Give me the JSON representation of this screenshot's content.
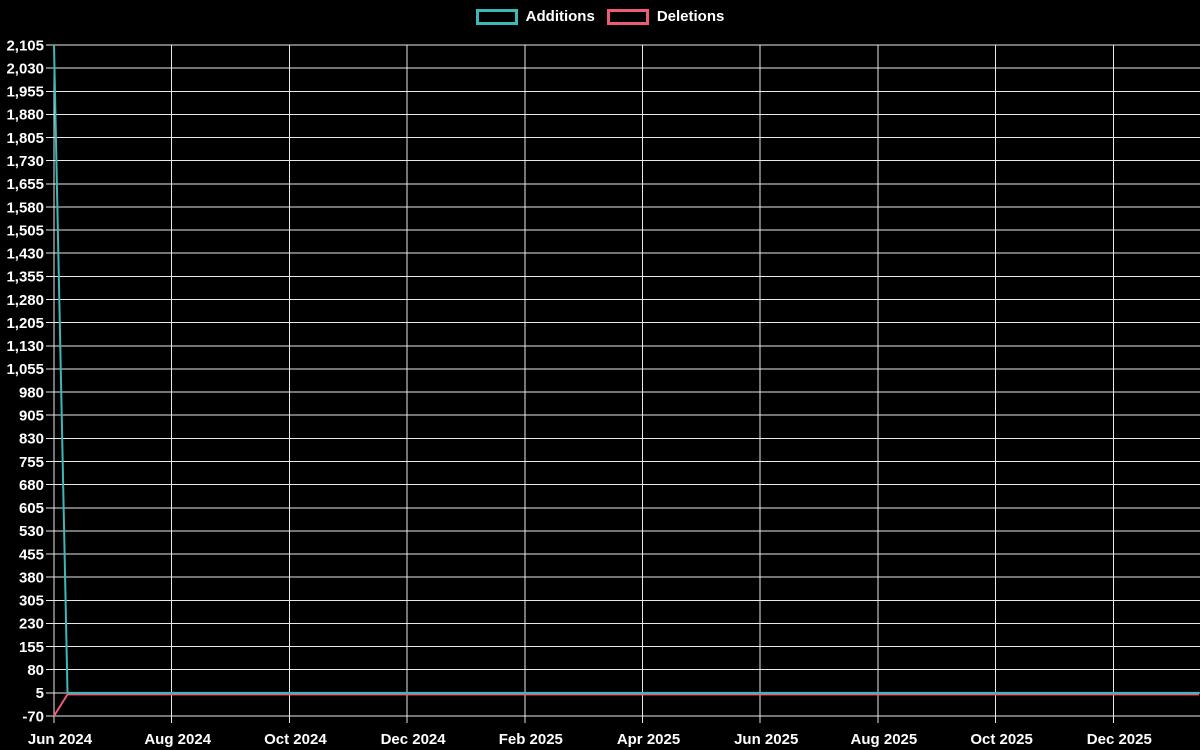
{
  "colors": {
    "background": "#000000",
    "grid": "#e8e8e8",
    "text": "#ffffff",
    "additions": "#3db8b8",
    "deletions": "#ed5b76"
  },
  "legend": {
    "items": [
      {
        "label": "Additions",
        "color": "#3db8b8",
        "series": "Additions"
      },
      {
        "label": "Deletions",
        "color": "#ed5b76",
        "series": "Deletions"
      }
    ]
  },
  "chart_data": {
    "type": "line",
    "title": "",
    "legend_position": "top-center",
    "grid": true,
    "x_axis": {
      "tick_labels": [
        "Jun 2024",
        "Aug 2024",
        "Oct 2024",
        "Dec 2024",
        "Feb 2025",
        "Apr 2025",
        "Jun 2025",
        "Aug 2025",
        "Oct 2025",
        "Dec 2025"
      ],
      "start_date": "2024-06-09",
      "months_per_gridline": 2
    },
    "y_axis": {
      "min": -70,
      "max": 2105,
      "tick_step": 75,
      "tick_labels": [
        "2,105",
        "2,030",
        "1,955",
        "1,880",
        "1,805",
        "1,730",
        "1,655",
        "1,580",
        "1,505",
        "1,430",
        "1,355",
        "1,280",
        "1,205",
        "1,130",
        "1,055",
        "980",
        "905",
        "830",
        "755",
        "680",
        "605",
        "530",
        "455",
        "380",
        "305",
        "230",
        "155",
        "80",
        "5",
        "-70"
      ]
    },
    "series": [
      {
        "name": "Additions",
        "color": "#3db8b8",
        "points": [
          {
            "date": "2024-06-09",
            "value": 2105
          },
          {
            "date": "2024-06-16",
            "value": 5
          },
          {
            "date": "2026-01-18",
            "value": 5
          }
        ]
      },
      {
        "name": "Deletions",
        "color": "#ed5b76",
        "points": [
          {
            "date": "2024-06-09",
            "value": -70
          },
          {
            "date": "2024-06-16",
            "value": 0
          },
          {
            "date": "2026-01-18",
            "value": 0
          }
        ]
      }
    ]
  }
}
